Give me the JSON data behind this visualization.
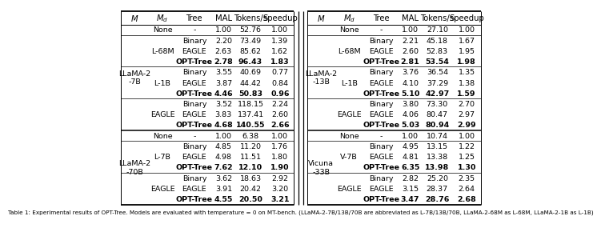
{
  "left_table": {
    "sections": [
      {
        "M": "LLaMA-2\n-7B",
        "rows": [
          {
            "Md": "None",
            "Tree": "-",
            "MAL": "1.00",
            "Tokens": "52.76",
            "Speedup": "1.00",
            "bold": false
          },
          {
            "Md": "L-68M",
            "Tree": "Binary",
            "MAL": "2.20",
            "Tokens": "73.49",
            "Speedup": "1.39",
            "bold": false
          },
          {
            "Md": "L-68M",
            "Tree": "EAGLE",
            "MAL": "2.63",
            "Tokens": "85.62",
            "Speedup": "1.62",
            "bold": false
          },
          {
            "Md": "L-68M",
            "Tree": "OPT-Tree",
            "MAL": "2.78",
            "Tokens": "96.43",
            "Speedup": "1.83",
            "bold": true
          },
          {
            "Md": "L-1B",
            "Tree": "Binary",
            "MAL": "3.55",
            "Tokens": "40.69",
            "Speedup": "0.77",
            "bold": false
          },
          {
            "Md": "L-1B",
            "Tree": "EAGLE",
            "MAL": "3.87",
            "Tokens": "44.42",
            "Speedup": "0.84",
            "bold": false
          },
          {
            "Md": "L-1B",
            "Tree": "OPT-Tree",
            "MAL": "4.46",
            "Tokens": "50.83",
            "Speedup": "0.96",
            "bold": true
          },
          {
            "Md": "EAGLE",
            "Tree": "Binary",
            "MAL": "3.52",
            "Tokens": "118.15",
            "Speedup": "2.24",
            "bold": false
          },
          {
            "Md": "EAGLE",
            "Tree": "EAGLE",
            "MAL": "3.83",
            "Tokens": "137.41",
            "Speedup": "2.60",
            "bold": false
          },
          {
            "Md": "EAGLE",
            "Tree": "OPT-Tree",
            "MAL": "4.68",
            "Tokens": "140.55",
            "Speedup": "2.66",
            "bold": true
          }
        ]
      },
      {
        "M": "LLaMA-2\n-70B",
        "rows": [
          {
            "Md": "None",
            "Tree": "-",
            "MAL": "1.00",
            "Tokens": "6.38",
            "Speedup": "1.00",
            "bold": false
          },
          {
            "Md": "L-7B",
            "Tree": "Binary",
            "MAL": "4.85",
            "Tokens": "11.20",
            "Speedup": "1.76",
            "bold": false
          },
          {
            "Md": "L-7B",
            "Tree": "EAGLE",
            "MAL": "4.98",
            "Tokens": "11.51",
            "Speedup": "1.80",
            "bold": false
          },
          {
            "Md": "L-7B",
            "Tree": "OPT-Tree",
            "MAL": "7.62",
            "Tokens": "12.10",
            "Speedup": "1.90",
            "bold": true
          },
          {
            "Md": "EAGLE",
            "Tree": "Binary",
            "MAL": "3.62",
            "Tokens": "18.63",
            "Speedup": "2.92",
            "bold": false
          },
          {
            "Md": "EAGLE",
            "Tree": "EAGLE",
            "MAL": "3.91",
            "Tokens": "20.42",
            "Speedup": "3.20",
            "bold": false
          },
          {
            "Md": "EAGLE",
            "Tree": "OPT-Tree",
            "MAL": "4.55",
            "Tokens": "20.50",
            "Speedup": "3.21",
            "bold": true
          }
        ]
      }
    ]
  },
  "right_table": {
    "sections": [
      {
        "M": "LLaMA-2\n-13B",
        "rows": [
          {
            "Md": "None",
            "Tree": "-",
            "MAL": "1.00",
            "Tokens": "27.10",
            "Speedup": "1.00",
            "bold": false
          },
          {
            "Md": "L-68M",
            "Tree": "Binary",
            "MAL": "2.21",
            "Tokens": "45.18",
            "Speedup": "1.67",
            "bold": false
          },
          {
            "Md": "L-68M",
            "Tree": "EAGLE",
            "MAL": "2.60",
            "Tokens": "52.83",
            "Speedup": "1.95",
            "bold": false
          },
          {
            "Md": "L-68M",
            "Tree": "OPT-Tree",
            "MAL": "2.81",
            "Tokens": "53.54",
            "Speedup": "1.98",
            "bold": true
          },
          {
            "Md": "L-1B",
            "Tree": "Binary",
            "MAL": "3.76",
            "Tokens": "36.54",
            "Speedup": "1.35",
            "bold": false
          },
          {
            "Md": "L-1B",
            "Tree": "EAGLE",
            "MAL": "4.10",
            "Tokens": "37.29",
            "Speedup": "1.38",
            "bold": false
          },
          {
            "Md": "L-1B",
            "Tree": "OPT-Tree",
            "MAL": "5.10",
            "Tokens": "42.97",
            "Speedup": "1.59",
            "bold": true
          },
          {
            "Md": "EAGLE",
            "Tree": "Binary",
            "MAL": "3.80",
            "Tokens": "73.30",
            "Speedup": "2.70",
            "bold": false
          },
          {
            "Md": "EAGLE",
            "Tree": "EAGLE",
            "MAL": "4.06",
            "Tokens": "80.47",
            "Speedup": "2.97",
            "bold": false
          },
          {
            "Md": "EAGLE",
            "Tree": "OPT-Tree",
            "MAL": "5.03",
            "Tokens": "80.94",
            "Speedup": "2.99",
            "bold": true
          }
        ]
      },
      {
        "M": "Vicuna\n-33B",
        "rows": [
          {
            "Md": "None",
            "Tree": "-",
            "MAL": "1.00",
            "Tokens": "10.74",
            "Speedup": "1.00",
            "bold": false
          },
          {
            "Md": "V-7B",
            "Tree": "Binary",
            "MAL": "4.95",
            "Tokens": "13.15",
            "Speedup": "1.22",
            "bold": false
          },
          {
            "Md": "V-7B",
            "Tree": "EAGLE",
            "MAL": "4.81",
            "Tokens": "13.38",
            "Speedup": "1.25",
            "bold": false
          },
          {
            "Md": "V-7B",
            "Tree": "OPT-Tree",
            "MAL": "6.35",
            "Tokens": "13.98",
            "Speedup": "1.30",
            "bold": true
          },
          {
            "Md": "EAGLE",
            "Tree": "Binary",
            "MAL": "2.82",
            "Tokens": "25.20",
            "Speedup": "2.35",
            "bold": false
          },
          {
            "Md": "EAGLE",
            "Tree": "EAGLE",
            "MAL": "3.15",
            "Tokens": "28.37",
            "Speedup": "2.64",
            "bold": false
          },
          {
            "Md": "EAGLE",
            "Tree": "OPT-Tree",
            "MAL": "3.47",
            "Tokens": "28.76",
            "Speedup": "2.68",
            "bold": true
          }
        ]
      }
    ]
  },
  "caption": "Table 1: Experimental results of OPT-Tree. Models are evaluated with temperature = 0 on MT-bench. (LLaMA-2-7B/13B/70B are abbreviated as L-7B/13B/70B, LLaMA-2-68M as L-68M, LLaMA-2-1B as L-1B)",
  "bg_color": "#ffffff",
  "text_color": "#000000",
  "font_size": 6.8,
  "header_font_size": 7.2
}
